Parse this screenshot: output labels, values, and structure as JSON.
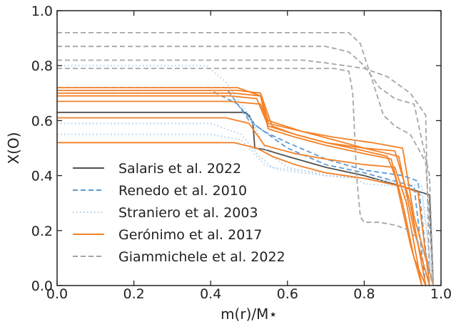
{
  "chart_data": {
    "type": "line",
    "xlabel": "m(r)/M⋆",
    "ylabel": "X(O)",
    "xlim": [
      0.0,
      1.0
    ],
    "ylim": [
      0.0,
      1.0
    ],
    "xticks": [
      "0.0",
      "0.2",
      "0.4",
      "0.6",
      "0.8",
      "1.0"
    ],
    "yticks": [
      "0.0",
      "0.2",
      "0.4",
      "0.6",
      "0.8",
      "1.0"
    ],
    "grid": false,
    "legend_placement": "lower-left",
    "groups": [
      {
        "name": "Salaris et al. 2022",
        "color": "#505050",
        "dash": "solid",
        "curves": [
          [
            [
              0.0,
              0.63
            ],
            [
              0.49,
              0.63
            ],
            [
              0.5,
              0.62
            ],
            [
              0.51,
              0.59
            ],
            [
              0.515,
              0.5
            ],
            [
              0.54,
              0.495
            ],
            [
              0.6,
              0.47
            ],
            [
              0.7,
              0.43
            ],
            [
              0.8,
              0.4
            ],
            [
              0.9,
              0.36
            ],
            [
              0.97,
              0.33
            ],
            [
              0.98,
              0.0
            ]
          ]
        ]
      },
      {
        "name": "Renedo et al. 2010",
        "color": "#5b9bd5",
        "dash": "dashed",
        "curves": [
          [
            [
              0.0,
              0.72
            ],
            [
              0.44,
              0.72
            ],
            [
              0.5,
              0.6
            ],
            [
              0.54,
              0.56
            ],
            [
              0.6,
              0.52
            ],
            [
              0.7,
              0.46
            ],
            [
              0.8,
              0.42
            ],
            [
              0.9,
              0.4
            ],
            [
              0.94,
              0.38
            ],
            [
              0.97,
              0.0
            ]
          ],
          [
            [
              0.0,
              0.71
            ],
            [
              0.4,
              0.71
            ],
            [
              0.47,
              0.66
            ],
            [
              0.52,
              0.58
            ],
            [
              0.6,
              0.5
            ],
            [
              0.7,
              0.44
            ],
            [
              0.8,
              0.41
            ],
            [
              0.88,
              0.38
            ],
            [
              0.93,
              0.36
            ],
            [
              0.96,
              0.0
            ]
          ]
        ]
      },
      {
        "name": "Straniero et al. 2003",
        "color": "#a9cce8",
        "dash": "dotted",
        "curves": [
          [
            [
              0.0,
              0.8
            ],
            [
              0.39,
              0.8
            ],
            [
              0.44,
              0.74
            ],
            [
              0.5,
              0.62
            ],
            [
              0.55,
              0.48
            ],
            [
              0.6,
              0.43
            ],
            [
              0.7,
              0.4
            ],
            [
              0.78,
              0.39
            ],
            [
              0.8,
              0.37
            ],
            [
              0.9,
              0.36
            ],
            [
              0.95,
              0.33
            ],
            [
              0.98,
              0.0
            ]
          ],
          [
            [
              0.0,
              0.59
            ],
            [
              0.4,
              0.59
            ],
            [
              0.48,
              0.55
            ],
            [
              0.52,
              0.48
            ],
            [
              0.56,
              0.43
            ],
            [
              0.62,
              0.42
            ],
            [
              0.7,
              0.41
            ],
            [
              0.8,
              0.39
            ],
            [
              0.88,
              0.38
            ],
            [
              0.95,
              0.36
            ],
            [
              0.98,
              0.0
            ]
          ],
          [
            [
              0.0,
              0.55
            ],
            [
              0.4,
              0.55
            ],
            [
              0.48,
              0.53
            ],
            [
              0.54,
              0.44
            ],
            [
              0.58,
              0.42
            ],
            [
              0.7,
              0.4
            ],
            [
              0.8,
              0.39
            ],
            [
              0.9,
              0.37
            ],
            [
              0.97,
              0.0
            ]
          ]
        ]
      },
      {
        "name": "Gerónimo et al. 2017",
        "color": "#f58025",
        "dash": "solid",
        "curves": [
          [
            [
              0.0,
              0.71
            ],
            [
              0.47,
              0.71
            ],
            [
              0.53,
              0.7
            ],
            [
              0.56,
              0.58
            ],
            [
              0.62,
              0.55
            ],
            [
              0.7,
              0.52
            ],
            [
              0.8,
              0.49
            ],
            [
              0.86,
              0.47
            ],
            [
              0.88,
              0.4
            ],
            [
              0.92,
              0.15
            ],
            [
              0.95,
              0.0
            ]
          ],
          [
            [
              0.0,
              0.7
            ],
            [
              0.46,
              0.7
            ],
            [
              0.53,
              0.69
            ],
            [
              0.55,
              0.57
            ],
            [
              0.62,
              0.54
            ],
            [
              0.7,
              0.51
            ],
            [
              0.8,
              0.48
            ],
            [
              0.87,
              0.46
            ],
            [
              0.9,
              0.3
            ],
            [
              0.93,
              0.1
            ],
            [
              0.96,
              0.0
            ]
          ],
          [
            [
              0.0,
              0.69
            ],
            [
              0.45,
              0.69
            ],
            [
              0.52,
              0.68
            ],
            [
              0.55,
              0.58
            ],
            [
              0.62,
              0.55
            ],
            [
              0.7,
              0.52
            ],
            [
              0.8,
              0.5
            ],
            [
              0.88,
              0.49
            ],
            [
              0.92,
              0.3
            ],
            [
              0.96,
              0.0
            ]
          ],
          [
            [
              0.0,
              0.67
            ],
            [
              0.45,
              0.67
            ],
            [
              0.53,
              0.66
            ],
            [
              0.55,
              0.59
            ],
            [
              0.64,
              0.56
            ],
            [
              0.72,
              0.53
            ],
            [
              0.8,
              0.5
            ],
            [
              0.89,
              0.47
            ],
            [
              0.93,
              0.2
            ],
            [
              0.97,
              0.0
            ]
          ],
          [
            [
              0.0,
              0.52
            ],
            [
              0.46,
              0.52
            ],
            [
              0.52,
              0.5
            ],
            [
              0.56,
              0.47
            ],
            [
              0.62,
              0.44
            ],
            [
              0.7,
              0.41
            ],
            [
              0.8,
              0.39
            ],
            [
              0.9,
              0.36
            ],
            [
              0.94,
              0.34
            ],
            [
              0.97,
              0.0
            ]
          ],
          [
            [
              0.0,
              0.61
            ],
            [
              0.44,
              0.61
            ],
            [
              0.5,
              0.59
            ],
            [
              0.54,
              0.51
            ],
            [
              0.62,
              0.48
            ],
            [
              0.7,
              0.46
            ],
            [
              0.8,
              0.44
            ],
            [
              0.88,
              0.43
            ],
            [
              0.91,
              0.3
            ],
            [
              0.95,
              0.0
            ]
          ],
          [
            [
              0.0,
              0.72
            ],
            [
              0.47,
              0.72
            ],
            [
              0.53,
              0.69
            ],
            [
              0.55,
              0.6
            ],
            [
              0.64,
              0.56
            ],
            [
              0.72,
              0.54
            ],
            [
              0.82,
              0.52
            ],
            [
              0.9,
              0.5
            ],
            [
              0.93,
              0.25
            ],
            [
              0.98,
              0.0
            ]
          ]
        ]
      },
      {
        "name": "Giammichele et al. 2022",
        "color": "#a6a6a6",
        "dash": "dashed",
        "curves": [
          [
            [
              0.0,
              0.92
            ],
            [
              0.76,
              0.92
            ],
            [
              0.79,
              0.88
            ],
            [
              0.82,
              0.75
            ],
            [
              0.85,
              0.62
            ],
            [
              0.88,
              0.58
            ],
            [
              0.92,
              0.55
            ],
            [
              0.96,
              0.45
            ],
            [
              0.98,
              0.0
            ]
          ],
          [
            [
              0.0,
              0.87
            ],
            [
              0.7,
              0.87
            ],
            [
              0.76,
              0.85
            ],
            [
              0.8,
              0.8
            ],
            [
              0.84,
              0.72
            ],
            [
              0.88,
              0.68
            ],
            [
              0.93,
              0.66
            ],
            [
              0.97,
              0.4
            ],
            [
              0.98,
              0.0
            ]
          ],
          [
            [
              0.0,
              0.82
            ],
            [
              0.64,
              0.82
            ],
            [
              0.7,
              0.81
            ],
            [
              0.75,
              0.8
            ],
            [
              0.8,
              0.79
            ],
            [
              0.86,
              0.76
            ],
            [
              0.92,
              0.7
            ],
            [
              0.96,
              0.62
            ],
            [
              0.97,
              0.0
            ]
          ],
          [
            [
              0.0,
              0.79
            ],
            [
              0.72,
              0.79
            ],
            [
              0.76,
              0.78
            ],
            [
              0.77,
              0.7
            ],
            [
              0.78,
              0.4
            ],
            [
              0.79,
              0.25
            ],
            [
              0.8,
              0.23
            ],
            [
              0.84,
              0.23
            ],
            [
              0.88,
              0.22
            ],
            [
              0.92,
              0.2
            ],
            [
              0.96,
              0.12
            ],
            [
              0.98,
              0.0
            ]
          ]
        ]
      }
    ]
  }
}
